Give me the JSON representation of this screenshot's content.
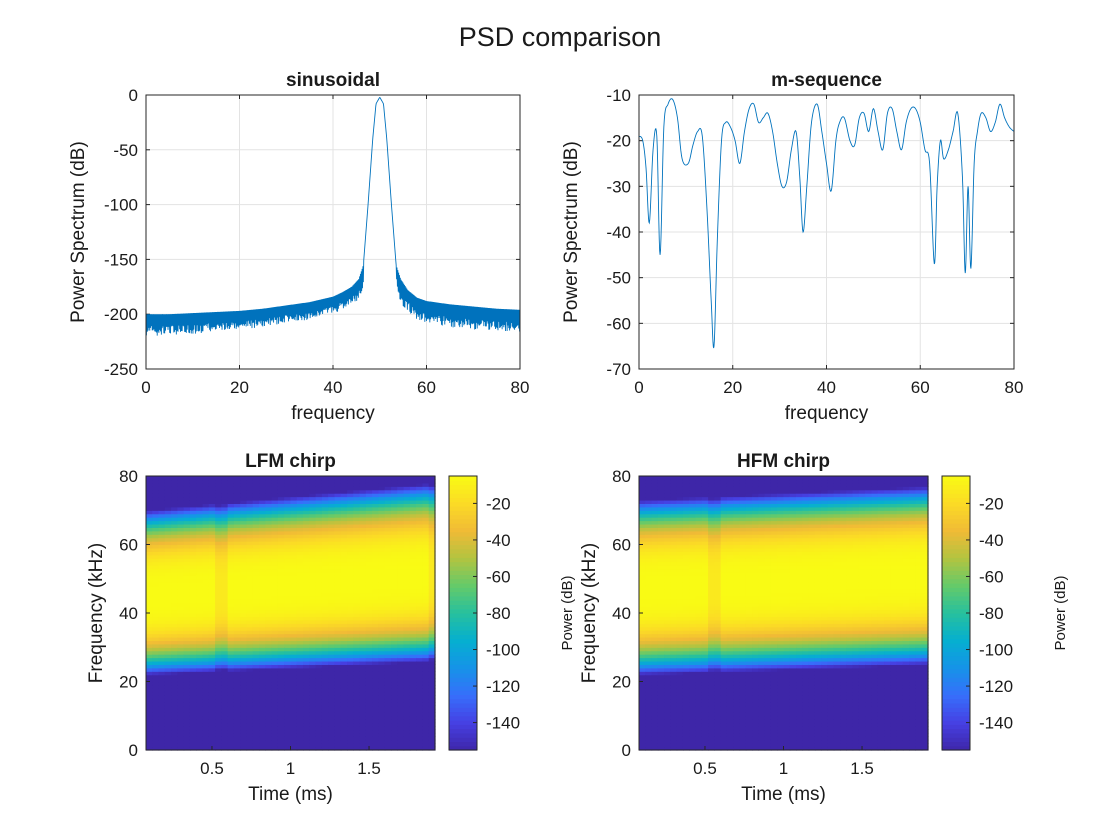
{
  "figure": {
    "title": "PSD comparison"
  },
  "chart_data": [
    {
      "type": "line",
      "title": "sinusoidal",
      "xlabel": "frequency",
      "ylabel": "Power Spectrum (dB)",
      "xlim": [
        0,
        80
      ],
      "ylim": [
        -250,
        0
      ],
      "xticks": [
        0,
        20,
        40,
        60,
        80
      ],
      "yticks": [
        0,
        -50,
        -100,
        -150,
        -200,
        -250
      ],
      "grid": true,
      "series": [
        {
          "color": "#0072BD",
          "x": [
            0,
            5,
            10,
            15,
            20,
            25,
            30,
            35,
            40,
            42,
            44,
            45.5,
            46.5,
            47.5,
            48.5,
            49.2,
            50,
            50.8,
            51.5,
            52.5,
            53.5,
            54.5,
            56,
            58,
            60,
            65,
            70,
            75,
            80
          ],
          "y": [
            -200,
            -200,
            -199,
            -198,
            -197,
            -195,
            -192,
            -189,
            -184,
            -180,
            -175,
            -168,
            -155,
            -100,
            -40,
            -8,
            -2,
            -8,
            -40,
            -100,
            -155,
            -168,
            -178,
            -185,
            -188,
            -191,
            -193,
            -195,
            -196
          ],
          "noise_floor_min": [
            -220,
            -219,
            -218,
            -216,
            -214,
            -212,
            -208,
            -205,
            -200,
            -196,
            -192,
            -188,
            -175,
            null,
            null,
            null,
            null,
            null,
            null,
            null,
            -175,
            -190,
            -198,
            -205,
            -208,
            -212,
            -214,
            -215,
            -216
          ]
        }
      ]
    },
    {
      "type": "line",
      "title": "m-sequence",
      "xlabel": "frequency",
      "ylabel": "Power Spectrum (dB)",
      "xlim": [
        0,
        80
      ],
      "ylim": [
        -70,
        -10
      ],
      "xticks": [
        0,
        20,
        40,
        60,
        80
      ],
      "yticks": [
        -10,
        -20,
        -30,
        -40,
        -50,
        -60,
        -70
      ],
      "grid": true,
      "series": [
        {
          "color": "#0072BD",
          "x": [
            0,
            0.8,
            1.5,
            2.2,
            3,
            3.8,
            4.5,
            5.3,
            6.2,
            7.2,
            8.2,
            9.2,
            10.5,
            11.5,
            12.5,
            13.5,
            14.5,
            15.4,
            16,
            16.7,
            17.6,
            18.5,
            19.5,
            20.5,
            21.5,
            22.5,
            23.5,
            24.5,
            25.5,
            26.5,
            27.5,
            28.5,
            29.5,
            30.5,
            31.5,
            32.5,
            33.5,
            34.3,
            35,
            35.8,
            36.8,
            38,
            39,
            40,
            41,
            42,
            42.8,
            43.8,
            45,
            46,
            47,
            48,
            49,
            50,
            51,
            52,
            53,
            54,
            55,
            56,
            57,
            58,
            59,
            60,
            61,
            62,
            63,
            63.6,
            64.3,
            65,
            66,
            67,
            68,
            69,
            69.6,
            70.2,
            70.8,
            71.5,
            72.2,
            73,
            74,
            75,
            76,
            77,
            78,
            79,
            80
          ],
          "y": [
            -19,
            -20,
            -26,
            -38,
            -22,
            -19,
            -45,
            -17,
            -12,
            -11,
            -15,
            -24,
            -25,
            -21,
            -18,
            -19,
            -35,
            -55,
            -65,
            -42,
            -20,
            -16,
            -17,
            -20,
            -25,
            -18,
            -13,
            -12,
            -16,
            -15,
            -14,
            -18,
            -25,
            -30,
            -29,
            -22,
            -18,
            -28,
            -40,
            -30,
            -16,
            -12,
            -18,
            -25,
            -31,
            -20,
            -16,
            -15,
            -20,
            -21,
            -15,
            -14,
            -18,
            -13,
            -18,
            -22,
            -14,
            -13,
            -18,
            -22,
            -16,
            -13,
            -13,
            -16,
            -22,
            -25,
            -47,
            -30,
            -20,
            -24,
            -22,
            -18,
            -14,
            -28,
            -49,
            -30,
            -48,
            -25,
            -18,
            -14,
            -15,
            -18,
            -16,
            -12,
            -15,
            -17,
            -18
          ]
        }
      ]
    },
    {
      "type": "heatmap",
      "title": "LFM chirp",
      "xlabel": "Time (ms)",
      "ylabel": "Frequency (kHz)",
      "xlim": [
        0.08,
        1.92
      ],
      "ylim": [
        0,
        80
      ],
      "xticks": [
        0.5,
        1,
        1.5
      ],
      "yticks": [
        0,
        20,
        40,
        60,
        80
      ],
      "colormap": "parula",
      "colorbar": {
        "label": "Power (dB)",
        "range": [
          -155,
          -5
        ],
        "ticks": [
          -20,
          -40,
          -60,
          -80,
          -100,
          -120,
          -140
        ]
      },
      "band": {
        "time": [
          0.08,
          1.92
        ],
        "lower_edge_khz": [
          22,
          26
        ],
        "upper_edge_khz": [
          70,
          78
        ],
        "center_khz": [
          45,
          51
        ],
        "seams_ms": [
          0.55,
          1.9
        ]
      }
    },
    {
      "type": "heatmap",
      "title": "HFM chirp",
      "xlabel": "Time (ms)",
      "ylabel": "Frequency (kHz)",
      "xlim": [
        0.08,
        1.92
      ],
      "ylim": [
        0,
        80
      ],
      "xticks": [
        0.5,
        1,
        1.5
      ],
      "yticks": [
        0,
        20,
        40,
        60,
        80
      ],
      "colormap": "parula",
      "colorbar": {
        "label": "Power (dB)",
        "range": [
          -155,
          -5
        ],
        "ticks": [
          -20,
          -40,
          -60,
          -80,
          -100,
          -120,
          -140
        ]
      },
      "band": {
        "time": [
          0.08,
          1.92
        ],
        "lower_edge_khz": [
          22,
          25
        ],
        "upper_edge_khz": [
          73,
          77
        ],
        "center_khz": [
          47,
          51
        ],
        "seams_ms": [
          0.55
        ]
      }
    }
  ]
}
